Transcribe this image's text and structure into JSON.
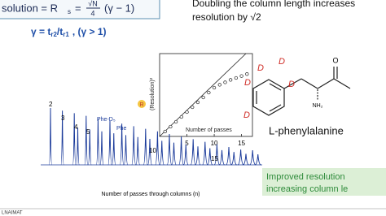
{
  "slide": {
    "formula": {
      "lhs": "solution = R",
      "subscript": "s",
      "equals": "=",
      "numerator": "√N",
      "denominator": "4",
      "factor": "(γ − 1)"
    },
    "gamma": {
      "text": "γ = t",
      "sub1": "r2",
      "slash": "/t",
      "sub2": "r1",
      "condition": ",  (γ > 1)"
    },
    "note": [
      "Doubling the column length increases",
      "resolution by √2"
    ],
    "chromatogram": {
      "peak_labels": [
        "2",
        "3",
        "4",
        "5",
        "Phe-D₅",
        "Phe",
        "10",
        "15"
      ],
      "x_label": "Number of passes through columns (n)"
    },
    "plot": {
      "type": "scatter",
      "x_label": "Number of passes",
      "y_label": "(Resolution)²",
      "xlim": [
        0,
        17
      ],
      "ylim": [
        0,
        17
      ],
      "xticks": [
        5,
        10,
        15
      ],
      "x": [
        1,
        2,
        3,
        4,
        5,
        6,
        7,
        8,
        9,
        10,
        11,
        12,
        13,
        14,
        15,
        16
      ],
      "y": [
        1,
        2,
        3,
        4,
        5,
        6,
        7,
        8,
        9,
        10,
        10.6,
        11.1,
        11.6,
        12,
        12.4,
        12.8
      ]
    },
    "molecule": {
      "name": "L-phenylalanine",
      "amine": "NH₂",
      "oxygen": "O",
      "deuterium_marks": [
        "D",
        "D",
        "D",
        "D",
        "D"
      ]
    },
    "callout": [
      "Improved resolution",
      "increasing column le"
    ],
    "footer": "LNAIMAT",
    "cursor": "R"
  }
}
